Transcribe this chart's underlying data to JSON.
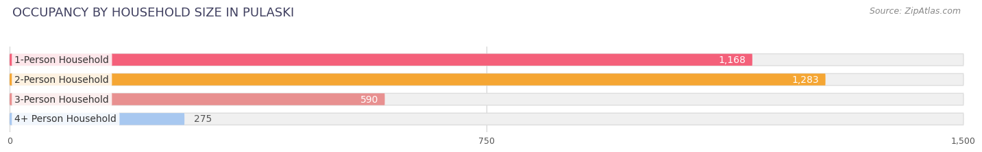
{
  "title": "OCCUPANCY BY HOUSEHOLD SIZE IN PULASKI",
  "source": "Source: ZipAtlas.com",
  "categories": [
    "1-Person Household",
    "2-Person Household",
    "3-Person Household",
    "4+ Person Household"
  ],
  "values": [
    1168,
    1283,
    590,
    275
  ],
  "bar_colors": [
    "#f4607a",
    "#f5a633",
    "#e89090",
    "#a8c8f0"
  ],
  "background_color": "#ffffff",
  "bar_bg_color": "#f0f0f0",
  "xlim": [
    0,
    1500
  ],
  "xticks": [
    0,
    750,
    1500
  ],
  "label_inside_color": "#ffffff",
  "label_outside_color": "#555555",
  "inside_threshold": 400,
  "title_fontsize": 13,
  "source_fontsize": 9,
  "bar_label_fontsize": 10,
  "category_fontsize": 10,
  "tick_fontsize": 9
}
